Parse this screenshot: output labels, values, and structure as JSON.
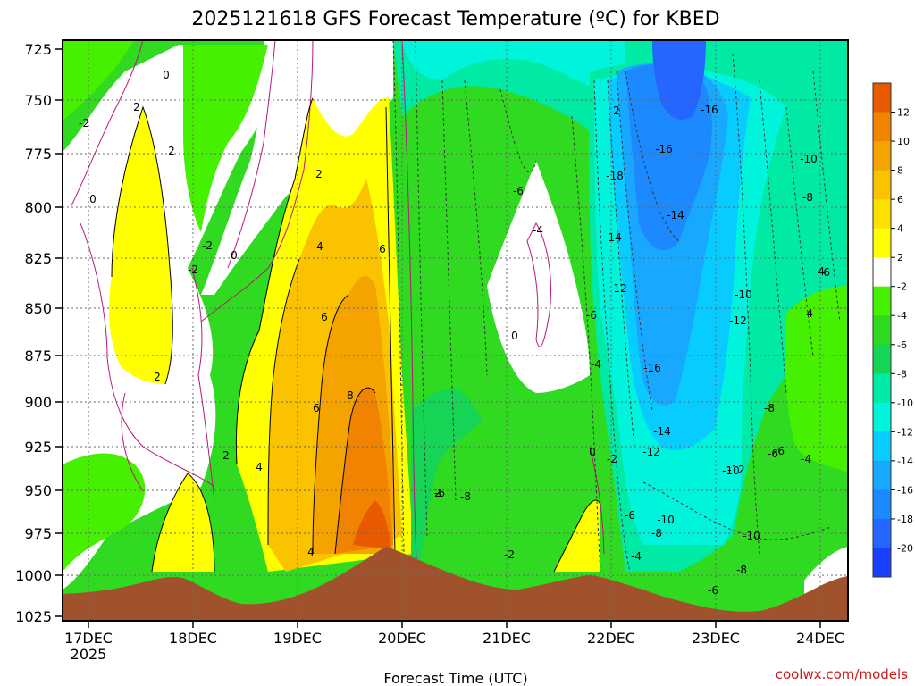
{
  "chart_data": {
    "type": "heatmap",
    "title": "2025121618 GFS Forecast Temperature (ºC) for KBED",
    "xlabel": "Forecast Time (UTC)",
    "ylabel": "",
    "x_ticks": [
      "17DEC",
      "18DEC",
      "19DEC",
      "20DEC",
      "21DEC",
      "22DEC",
      "23DEC",
      "24DEC"
    ],
    "x_year_label": "2025",
    "x_range_days": [
      16.75,
      24.25
    ],
    "y_ticks": [
      725,
      750,
      775,
      800,
      825,
      850,
      875,
      900,
      925,
      950,
      975,
      1000,
      1025
    ],
    "y_range": [
      725,
      1025
    ],
    "grid": "dotted",
    "colorbar": {
      "levels": [
        12,
        10,
        8,
        6,
        4,
        2,
        -2,
        -4,
        -6,
        -8,
        -10,
        -12,
        -14,
        -16,
        -18,
        -20
      ],
      "colors": [
        "#e85a00",
        "#f08400",
        "#f4a300",
        "#fbc200",
        "#fde000",
        "#ffff00",
        "#ffffff",
        "#45f000",
        "#2fda20",
        "#16d455",
        "#00e9a5",
        "#00f4db",
        "#08ccff",
        "#19a8ff",
        "#1c89ff",
        "#2466ff",
        "#1a40ff"
      ]
    },
    "contour_labels": [
      "0",
      "-2",
      "2",
      "2",
      "0",
      "-2",
      "-2",
      "2",
      "0",
      "2",
      "2",
      "4",
      "6",
      "6",
      "8",
      "6",
      "4",
      "4",
      "2",
      "-6",
      "-4",
      "0",
      "2",
      "-16",
      "-16",
      "-18",
      "-14",
      "-14",
      "-12",
      "-10",
      "-10",
      "-8",
      "-6",
      "-4",
      "-16",
      "-14",
      "-12",
      "-12",
      "-10",
      "-10",
      "-8",
      "-6",
      "-6",
      "-4",
      "-4",
      "0",
      "-2",
      "-6",
      "-8",
      "-2",
      "-8",
      "-6",
      "-4",
      "-6",
      "-8",
      "-10",
      "-12",
      "-4",
      "-6"
    ],
    "terrain": "surface pressure (brown)"
  },
  "credit": "coolwx.com/models"
}
